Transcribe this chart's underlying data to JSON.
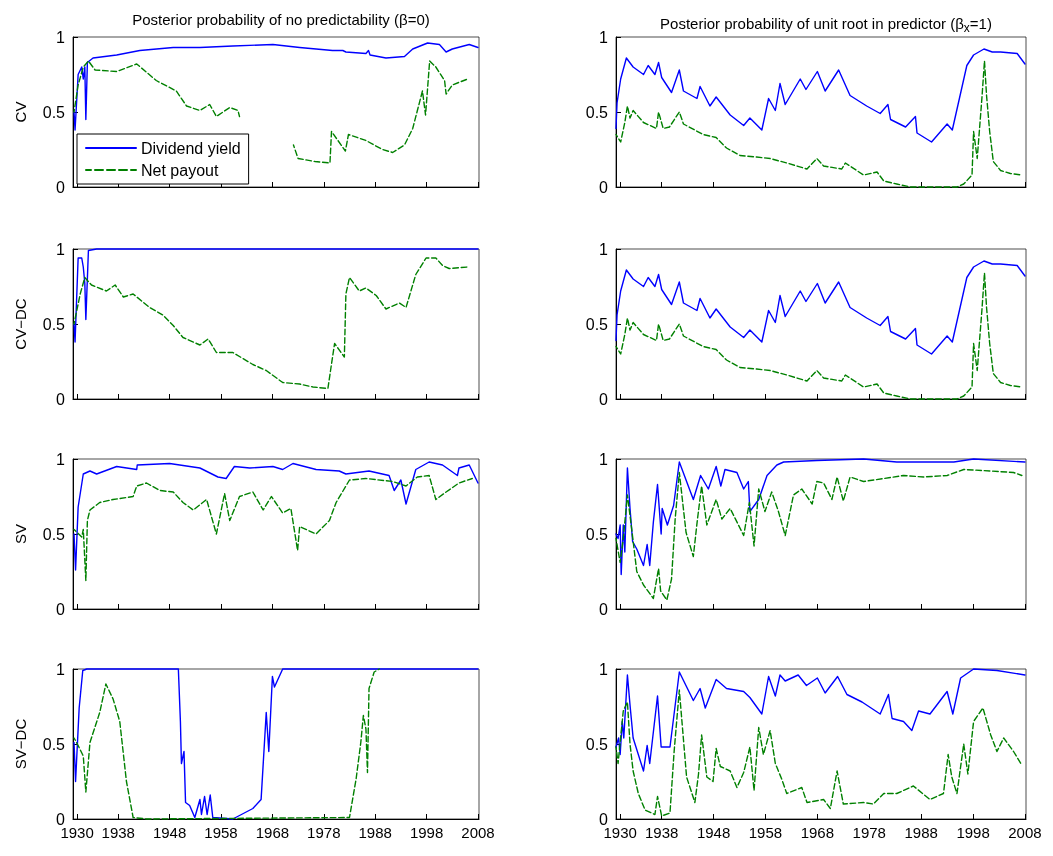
{
  "chart_data": [
    {
      "type": "line",
      "title": "Posterior probability of no predictability (β=0)",
      "ylabel": "CV",
      "xlim": [
        1929.2,
        2008.2
      ],
      "xticks": [
        1930,
        1938,
        1948,
        1958,
        1968,
        1978,
        1988,
        1998,
        2008
      ],
      "ylim": [
        0,
        1
      ],
      "yticks": [
        0,
        0.5,
        1
      ],
      "tick_labels": "y",
      "legend": "bottom left",
      "marker": "none",
      "series": [
        {
          "name": "Dividend yield",
          "color": "#0000ff",
          "line_style": "solid",
          "x": [
            1929.4,
            1929.6,
            1930.2,
            1930.9,
            1931.2,
            1931.5,
            1931.7,
            1932,
            1933.1,
            1937.7,
            1942.2,
            1948.7,
            1953.9,
            1960.3,
            1968.1,
            1973.3,
            1979.7,
            1981.7,
            1982.3,
            1986.2,
            1986.7,
            1987,
            1990.1,
            1993.7,
            1995.3,
            1998.2,
            2000.5,
            2001.8,
            2003,
            2006.3,
            2008
          ],
          "values": [
            0.5,
            0.38,
            0.75,
            0.8,
            0.72,
            0.8,
            0.45,
            0.83,
            0.86,
            0.88,
            0.91,
            0.93,
            0.93,
            0.94,
            0.95,
            0.93,
            0.91,
            0.91,
            0.9,
            0.89,
            0.91,
            0.88,
            0.86,
            0.87,
            0.92,
            0.96,
            0.95,
            0.9,
            0.92,
            0.95,
            0.93
          ]
        },
        {
          "name": "Net payout",
          "color": "#008000",
          "line_style": "dashed",
          "x": [
            1929.4,
            1930.2,
            1931.2,
            1932.2,
            1933.5,
            1937.7,
            1941.6,
            1945.4,
            1949.3,
            1951.3,
            1953.9,
            1955.8,
            1957.1,
            1959.7,
            1961.3,
            1961.6,
            1965,
            1972.1,
            1973,
            1976.3,
            1979.2,
            1979.5,
            1982.2,
            1982.8,
            1986.2,
            1989.4,
            1991.4,
            1993.7,
            1995.3,
            1997.2,
            1997.8,
            1998.6,
            1999.8,
            2001.5,
            2001.8,
            2003,
            2006
          ],
          "values": [
            0.5,
            0.68,
            0.8,
            0.84,
            0.78,
            0.77,
            0.82,
            0.71,
            0.64,
            0.54,
            0.51,
            0.55,
            0.47,
            0.53,
            0.51,
            0.47,
            null,
            0.28,
            0.19,
            0.17,
            0.16,
            0.37,
            0.24,
            0.35,
            0.31,
            0.25,
            0.23,
            0.28,
            0.39,
            0.64,
            0.48,
            0.84,
            0.8,
            0.71,
            0.62,
            0.68,
            0.72
          ]
        }
      ]
    },
    {
      "type": "line",
      "title": "Posterior probability of unit root in predictor (β$_{x}$=1)",
      "xlim": [
        1929.2,
        2008.2
      ],
      "xticks": [
        1930,
        1938,
        1948,
        1958,
        1968,
        1978,
        1988,
        1998,
        2008
      ],
      "ylim": [
        0,
        1
      ],
      "yticks": [
        0,
        0.5,
        1
      ],
      "tick_labels": "y",
      "marker": "none",
      "series": [
        {
          "color": "#0000ff",
          "line_style": "solid",
          "x": [
            1929.2,
            1929.4,
            1930.1,
            1931.2,
            1932.5,
            1934.5,
            1935.4,
            1936.7,
            1937.4,
            1938,
            1939.9,
            1941.4,
            1942.2,
            1944.8,
            1945.4,
            1947.3,
            1948.5,
            1951.2,
            1953.8,
            1955,
            1957.3,
            1958.6,
            1959.9,
            1960.8,
            1961.8,
            1964.7,
            1965.8,
            1968,
            1969.5,
            1972.1,
            1974.3,
            1977.5,
            1980.1,
            1981.6,
            1982.1,
            1985,
            1986.9,
            1987.2,
            1990,
            1993,
            1994,
            1996.8,
            1998.1,
            2000.1,
            2001.7,
            2003.3,
            2006.5,
            2008
          ],
          "values": [
            0.39,
            0.56,
            0.72,
            0.86,
            0.8,
            0.75,
            0.81,
            0.75,
            0.83,
            0.73,
            0.63,
            0.78,
            0.64,
            0.59,
            0.67,
            0.54,
            0.6,
            0.48,
            0.41,
            0.46,
            0.38,
            0.59,
            0.51,
            0.69,
            0.55,
            0.72,
            0.65,
            0.77,
            0.64,
            0.78,
            0.61,
            0.54,
            0.49,
            0.55,
            0.45,
            0.4,
            0.47,
            0.36,
            0.3,
            0.42,
            0.38,
            0.81,
            0.88,
            0.92,
            0.9,
            0.9,
            0.89,
            0.82
          ]
        },
        {
          "color": "#008000",
          "line_style": "dashed",
          "x": [
            1929.2,
            1930.1,
            1930.9,
            1931.4,
            1931.9,
            1932.5,
            1934.5,
            1937,
            1937.4,
            1938.3,
            1939.5,
            1941.4,
            1942.2,
            1946,
            1948.5,
            1950.5,
            1953.1,
            1956.3,
            1958.9,
            1962.1,
            1966,
            1967.9,
            1969.2,
            1972.7,
            1973.4,
            1976.9,
            1979.5,
            1980.8,
            1983.3,
            1985.9,
            1994.9,
            1996.2,
            1997.8,
            1998.1,
            1998.8,
            1999.7,
            2000.2,
            2000.6,
            2001.2,
            2001.9,
            2003.3,
            2005.2,
            2007.4
          ],
          "values": [
            0.35,
            0.3,
            0.43,
            0.54,
            0.46,
            0.51,
            0.43,
            0.39,
            0.5,
            0.39,
            0.4,
            0.5,
            0.42,
            0.35,
            0.33,
            0.26,
            0.21,
            0.2,
            0.19,
            0.16,
            0.12,
            0.19,
            0.14,
            0.12,
            0.16,
            0.08,
            0.1,
            0.04,
            0.02,
            0,
            0,
            0.02,
            0.08,
            0.37,
            0.19,
            0.59,
            0.84,
            0.61,
            0.37,
            0.17,
            0.11,
            0.09,
            0.08
          ]
        }
      ]
    },
    {
      "type": "line",
      "ylabel": "CV−DC",
      "xlim": [
        1929.2,
        2008.2
      ],
      "xticks": [
        1930,
        1938,
        1948,
        1958,
        1968,
        1978,
        1988,
        1998,
        2008
      ],
      "ylim": [
        0,
        1
      ],
      "yticks": [
        0,
        0.5,
        1
      ],
      "tick_labels": "y",
      "marker": "none",
      "series": [
        {
          "color": "#0000ff",
          "line_style": "solid",
          "x": [
            1929.4,
            1929.6,
            1930.2,
            1930.9,
            1931.2,
            1931.5,
            1931.7,
            1932.2,
            1933.8,
            2008
          ],
          "values": [
            0.5,
            0.38,
            0.94,
            0.94,
            0.88,
            0.77,
            0.53,
            0.99,
            1,
            1
          ]
        },
        {
          "color": "#008000",
          "line_style": "dashed",
          "x": [
            1929.4,
            1930.6,
            1931.5,
            1932.8,
            1935.7,
            1937.4,
            1939,
            1940.9,
            1944.1,
            1946.7,
            1948.7,
            1950.6,
            1953.9,
            1955.5,
            1957.1,
            1960.3,
            1964.2,
            1966.8,
            1970,
            1973.3,
            1975.9,
            1978.8,
            1979.4,
            1980.1,
            1982,
            1982.3,
            1983,
            1984.9,
            1986.2,
            1988.2,
            1990.1,
            1992.7,
            1994,
            1995.9,
            1997.9,
            1999.8,
            2001.1,
            2002.4,
            2006
          ],
          "values": [
            0.5,
            0.7,
            0.81,
            0.76,
            0.72,
            0.76,
            0.68,
            0.7,
            0.61,
            0.56,
            0.49,
            0.41,
            0.36,
            0.4,
            0.31,
            0.31,
            0.23,
            0.19,
            0.11,
            0.1,
            0.08,
            0.07,
            0.21,
            0.37,
            0.28,
            0.7,
            0.81,
            0.72,
            0.74,
            0.69,
            0.6,
            0.64,
            0.61,
            0.83,
            0.94,
            0.94,
            0.89,
            0.87,
            0.88
          ]
        }
      ]
    },
    {
      "type": "line",
      "xlim": [
        1929.2,
        2008.2
      ],
      "xticks": [
        1930,
        1938,
        1948,
        1958,
        1968,
        1978,
        1988,
        1998,
        2008
      ],
      "ylim": [
        0,
        1
      ],
      "yticks": [
        0,
        0.5,
        1
      ],
      "tick_labels": "y",
      "marker": "none",
      "series": [
        {
          "color": "#0000ff",
          "line_style": "solid",
          "x": [
            1929.2,
            1929.4,
            1930.1,
            1931.2,
            1932.5,
            1934.5,
            1935.4,
            1936.7,
            1937.4,
            1938,
            1939.9,
            1941.4,
            1942.2,
            1944.8,
            1945.4,
            1947.3,
            1948.5,
            1951.2,
            1953.8,
            1955,
            1957.3,
            1958.6,
            1959.9,
            1960.8,
            1961.8,
            1964.7,
            1965.8,
            1968,
            1969.5,
            1972.1,
            1974.3,
            1977.5,
            1980.1,
            1981.6,
            1982.1,
            1985,
            1986.9,
            1987.2,
            1990,
            1993,
            1994,
            1996.8,
            1998.1,
            2000.1,
            2001.7,
            2003.3,
            2006.5,
            2008
          ],
          "values": [
            0.39,
            0.56,
            0.72,
            0.86,
            0.8,
            0.75,
            0.81,
            0.75,
            0.83,
            0.73,
            0.63,
            0.78,
            0.64,
            0.59,
            0.67,
            0.54,
            0.6,
            0.48,
            0.41,
            0.46,
            0.38,
            0.59,
            0.51,
            0.69,
            0.55,
            0.72,
            0.65,
            0.77,
            0.64,
            0.78,
            0.61,
            0.54,
            0.49,
            0.55,
            0.45,
            0.4,
            0.47,
            0.36,
            0.3,
            0.42,
            0.38,
            0.81,
            0.88,
            0.92,
            0.9,
            0.9,
            0.89,
            0.82
          ]
        },
        {
          "color": "#008000",
          "line_style": "dashed",
          "x": [
            1929.2,
            1930.1,
            1930.9,
            1931.4,
            1931.9,
            1932.5,
            1934.5,
            1937,
            1937.4,
            1938.3,
            1939.5,
            1941.4,
            1942.2,
            1946,
            1948.5,
            1950.5,
            1953.1,
            1956.3,
            1958.9,
            1962.1,
            1966,
            1967.9,
            1969.2,
            1972.7,
            1973.4,
            1976.9,
            1979.5,
            1980.8,
            1983.3,
            1985.9,
            1994.9,
            1996.2,
            1997.8,
            1998.1,
            1998.8,
            1999.7,
            2000.2,
            2000.6,
            2001.2,
            2001.9,
            2003.3,
            2005.2,
            2007.4
          ],
          "values": [
            0.35,
            0.3,
            0.43,
            0.54,
            0.46,
            0.51,
            0.43,
            0.39,
            0.5,
            0.39,
            0.4,
            0.5,
            0.42,
            0.35,
            0.33,
            0.26,
            0.21,
            0.2,
            0.19,
            0.16,
            0.12,
            0.19,
            0.14,
            0.12,
            0.16,
            0.08,
            0.1,
            0.04,
            0.02,
            0,
            0,
            0.02,
            0.08,
            0.37,
            0.19,
            0.59,
            0.84,
            0.61,
            0.37,
            0.17,
            0.11,
            0.09,
            0.08
          ]
        }
      ]
    },
    {
      "type": "line",
      "ylabel": "SV",
      "xlim": [
        1929.2,
        2008.2
      ],
      "xticks": [
        1930,
        1938,
        1948,
        1958,
        1968,
        1978,
        1988,
        1998,
        2008
      ],
      "ylim": [
        0,
        1
      ],
      "yticks": [
        0,
        0.5,
        1
      ],
      "tick_labels": "y",
      "marker": "none",
      "series": [
        {
          "color": "#0000ff",
          "line_style": "solid",
          "x": [
            1929.4,
            1929.7,
            1930.2,
            1931.2,
            1932.5,
            1933.8,
            1937.7,
            1941.6,
            1941.7,
            1948,
            1953.9,
            1957.4,
            1959,
            1960.6,
            1963.6,
            1968.1,
            1970,
            1972,
            1976.5,
            1981,
            1982.3,
            1986.8,
            1990.7,
            1991.7,
            1993,
            1994,
            1995.9,
            1998.5,
            2001.1,
            2004,
            2004.3,
            2006.3,
            2008
          ],
          "values": [
            0.5,
            0.26,
            0.68,
            0.9,
            0.92,
            0.9,
            0.95,
            0.93,
            0.96,
            0.97,
            0.94,
            0.88,
            0.87,
            0.95,
            0.94,
            0.95,
            0.93,
            0.97,
            0.93,
            0.92,
            0.9,
            0.92,
            0.89,
            0.79,
            0.86,
            0.7,
            0.93,
            0.98,
            0.96,
            0.89,
            0.94,
            0.96,
            0.84
          ]
        },
        {
          "color": "#008000",
          "line_style": "dashed",
          "x": [
            1929.4,
            1930.9,
            1931.2,
            1931.7,
            1932,
            1932.5,
            1934.4,
            1937,
            1940.9,
            1941.6,
            1943.5,
            1946.1,
            1948.7,
            1950.6,
            1952.6,
            1955.2,
            1957.1,
            1958.7,
            1959.7,
            1961.6,
            1964.2,
            1966.2,
            1967.8,
            1970,
            1971.6,
            1972.9,
            1973.3,
            1976.5,
            1979.1,
            1980.4,
            1983,
            1986.2,
            1991.4,
            1994,
            1996.2,
            1998.5,
            1999.8,
            2001.8,
            2004.3,
            2006.9
          ],
          "values": [
            0.53,
            0.48,
            0.53,
            0.19,
            0.59,
            0.66,
            0.71,
            0.73,
            0.75,
            0.82,
            0.84,
            0.79,
            0.78,
            0.71,
            0.66,
            0.73,
            0.5,
            0.77,
            0.59,
            0.75,
            0.78,
            0.66,
            0.75,
            0.64,
            0.67,
            0.39,
            0.55,
            0.5,
            0.59,
            0.71,
            0.86,
            0.87,
            0.85,
            0.82,
            0.88,
            0.89,
            0.73,
            0.78,
            0.84,
            0.87
          ]
        }
      ]
    },
    {
      "type": "line",
      "xlim": [
        1929.2,
        2008.2
      ],
      "xticks": [
        1930,
        1938,
        1948,
        1958,
        1968,
        1978,
        1988,
        1998,
        2008
      ],
      "ylim": [
        0,
        1
      ],
      "yticks": [
        0,
        0.5,
        1
      ],
      "tick_labels": "y",
      "marker": "none",
      "series": [
        {
          "color": "#0000ff",
          "line_style": "solid",
          "x": [
            1929.2,
            1929.6,
            1930,
            1930.2,
            1930.6,
            1930.9,
            1931.4,
            1931.9,
            1932.4,
            1933.2,
            1934.5,
            1935.2,
            1935.7,
            1936.4,
            1937.2,
            1937.9,
            1938.1,
            1939.1,
            1940.3,
            1941.4,
            1944.1,
            1945.5,
            1947,
            1948.5,
            1949.4,
            1950.2,
            1952.5,
            1953.8,
            1954.7,
            1955,
            1956.7,
            1958.3,
            1960.2,
            1961.5,
            1967.9,
            1976.9,
            1983.3,
            1994.3,
            1998.1,
            2008
          ],
          "values": [
            0.5,
            0.47,
            0.56,
            0.23,
            0.56,
            0.38,
            0.94,
            0.67,
            0.45,
            0.4,
            0.29,
            0.43,
            0.29,
            0.58,
            0.83,
            0.5,
            0.67,
            0.56,
            0.69,
            0.98,
            0.73,
            0.89,
            0.8,
            0.95,
            0.82,
            0.93,
            0.91,
            0.8,
            0.85,
            0.65,
            0.73,
            0.89,
            0.96,
            0.98,
            0.99,
            1,
            0.98,
            0.98,
            1,
            0.98
          ]
        },
        {
          "color": "#008000",
          "line_style": "dashed",
          "x": [
            1929.2,
            1930,
            1930.6,
            1931.4,
            1932.2,
            1933.2,
            1934.5,
            1936.4,
            1937.4,
            1937.8,
            1939,
            1939.9,
            1940.6,
            1941.4,
            1942.7,
            1944.1,
            1944.9,
            1945.7,
            1946.7,
            1948.5,
            1949.6,
            1951.2,
            1953.8,
            1954.9,
            1955.8,
            1956.7,
            1957.9,
            1959.2,
            1960.5,
            1961.8,
            1963.4,
            1965,
            1967,
            1967.9,
            1969.2,
            1970.8,
            1971.8,
            1973,
            1974.3,
            1976.9,
            1980.8,
            1984.6,
            1988.5,
            1993,
            1996.2,
            2001.4,
            2005.8,
            2007.4
          ],
          "values": [
            0.47,
            0.31,
            0.47,
            0.76,
            0.54,
            0.25,
            0.16,
            0.07,
            0.27,
            0.12,
            0.06,
            0.2,
            0.6,
            0.91,
            0.51,
            0.35,
            0.6,
            0.82,
            0.56,
            0.73,
            0.6,
            0.67,
            0.49,
            0.71,
            0.42,
            0.8,
            0.65,
            0.78,
            0.65,
            0.49,
            0.76,
            0.8,
            0.7,
            0.85,
            0.84,
            0.73,
            0.88,
            0.72,
            0.88,
            0.85,
            0.87,
            0.89,
            0.88,
            0.89,
            0.93,
            0.92,
            0.91,
            0.89
          ]
        }
      ]
    },
    {
      "type": "line",
      "ylabel": "SV−DC",
      "xlim": [
        1929.2,
        2008.2
      ],
      "xticks": [
        1930,
        1938,
        1948,
        1958,
        1968,
        1978,
        1988,
        1998,
        2008
      ],
      "ylim": [
        0,
        1
      ],
      "yticks": [
        0,
        0.5,
        1
      ],
      "marker": "none",
      "series": [
        {
          "color": "#0000ff",
          "line_style": "solid",
          "x": [
            1929.4,
            1929.7,
            1930.4,
            1931.1,
            1931.9,
            1949.7,
            1950.1,
            1950.3,
            1950.8,
            1951.1,
            1951.9,
            1952.9,
            1953.9,
            1954.2,
            1954.8,
            1955.3,
            1955.9,
            1956.4,
            1960.3,
            1964.2,
            1965.8,
            1966.8,
            1967.3,
            1968,
            1968.4,
            1970,
            2008
          ],
          "values": [
            0.51,
            0.25,
            0.74,
            0.99,
            1,
            1,
            0.65,
            0.37,
            0.45,
            0.11,
            0.09,
            0.01,
            0.13,
            0.03,
            0.15,
            0.03,
            0.16,
            0.01,
            0,
            0.07,
            0.13,
            0.71,
            0.45,
            0.95,
            0.88,
            1,
            1
          ]
        },
        {
          "color": "#008000",
          "line_style": "dashed",
          "x": [
            1929.4,
            1930.2,
            1931.2,
            1931.7,
            1932.5,
            1934.4,
            1935.6,
            1937,
            1938.3,
            1939.6,
            1940.9,
            1943.5,
            1983,
            1984.3,
            1985.2,
            1985.7,
            1986.2,
            1986.5,
            1986.8,
            1987.8,
            1988.8
          ],
          "values": [
            0.54,
            0.49,
            0.42,
            0.18,
            0.51,
            0.71,
            0.9,
            0.8,
            0.65,
            0.25,
            0.01,
            0,
            0.01,
            0.27,
            0.51,
            0.69,
            0.6,
            0.31,
            0.87,
            0.98,
            1
          ]
        }
      ]
    },
    {
      "type": "line",
      "xlim": [
        1929.2,
        2008.2
      ],
      "xticks": [
        1930,
        1938,
        1948,
        1958,
        1968,
        1978,
        1988,
        1998,
        2008
      ],
      "ylim": [
        0,
        1
      ],
      "yticks": [
        0,
        0.5,
        1
      ],
      "marker": "none",
      "series": [
        {
          "color": "#0000ff",
          "line_style": "solid",
          "x": [
            1929.2,
            1929.7,
            1930,
            1930.4,
            1930.7,
            1931.4,
            1931.9,
            1932.5,
            1934.5,
            1935.2,
            1935.7,
            1937.2,
            1937.9,
            1939.6,
            1941.4,
            1944.1,
            1945.4,
            1946.4,
            1948.5,
            1950.5,
            1953.8,
            1955,
            1957.3,
            1958.6,
            1959.9,
            1960.8,
            1961.8,
            1964.3,
            1965.9,
            1968,
            1969.5,
            1971.9,
            1973.7,
            1976.6,
            1980.1,
            1981.7,
            1982.4,
            1984.6,
            1986.2,
            1987.5,
            1989.7,
            1993,
            1994.1,
            1995.6,
            1998.1,
            2002.6,
            2008
          ],
          "values": [
            0.48,
            0.54,
            0.43,
            0.65,
            0.54,
            0.96,
            0.76,
            0.54,
            0.32,
            0.49,
            0.37,
            0.82,
            0.48,
            0.48,
            0.98,
            0.79,
            0.87,
            0.74,
            0.93,
            0.87,
            0.85,
            0.81,
            0.7,
            0.95,
            0.82,
            0.96,
            0.92,
            0.96,
            0.89,
            0.94,
            0.84,
            0.95,
            0.83,
            0.78,
            0.7,
            0.83,
            0.67,
            0.65,
            0.59,
            0.72,
            0.7,
            0.85,
            0.7,
            0.94,
            1,
            0.99,
            0.96
          ]
        },
        {
          "color": "#008000",
          "line_style": "dashed",
          "x": [
            1929.2,
            1929.6,
            1930.6,
            1931.4,
            1931.9,
            1932.5,
            1933.5,
            1934.8,
            1936.7,
            1937.2,
            1938,
            1939.6,
            1940.4,
            1941.4,
            1942.8,
            1944.4,
            1945.1,
            1945.7,
            1946.7,
            1947.9,
            1948.5,
            1949.3,
            1951.2,
            1952.5,
            1953.8,
            1955,
            1955.8,
            1956.7,
            1957.6,
            1958.9,
            1959.9,
            1961.2,
            1962.1,
            1965,
            1966,
            1969.2,
            1970.5,
            1971.8,
            1973,
            1976.9,
            1978.8,
            1980.8,
            1983.3,
            1986.5,
            1989.7,
            1992.3,
            1993.2,
            1993.9,
            1994.9,
            1996.2,
            1997,
            1998.1,
            1999.9,
            2001.4,
            2002.6,
            2003.9,
            2005.8,
            2007.2
          ],
          "values": [
            0.48,
            0.37,
            0.72,
            0.78,
            0.5,
            0.32,
            0.17,
            0.06,
            0.03,
            0.15,
            0.02,
            0.04,
            0.45,
            0.86,
            0.28,
            0.11,
            0.3,
            0.56,
            0.28,
            0.25,
            0.47,
            0.35,
            0.32,
            0.21,
            0.31,
            0.48,
            0.19,
            0.61,
            0.43,
            0.59,
            0.37,
            0.26,
            0.17,
            0.21,
            0.11,
            0.13,
            0.07,
            0.32,
            0.1,
            0.11,
            0.1,
            0.17,
            0.17,
            0.22,
            0.13,
            0.17,
            0.43,
            0.28,
            0.17,
            0.5,
            0.3,
            0.65,
            0.74,
            0.56,
            0.45,
            0.54,
            0.45,
            0.37
          ]
        }
      ]
    }
  ]
}
